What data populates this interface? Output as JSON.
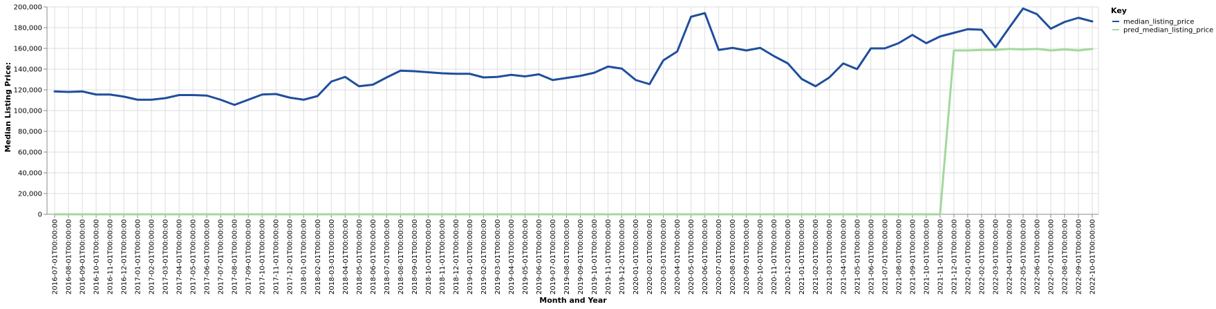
{
  "chart_data": {
    "type": "line",
    "title": "",
    "xlabel": "Month and Year",
    "ylabel": "Median Listing Price:",
    "ylim": [
      0,
      200000
    ],
    "y_ticks": [
      0,
      20000,
      40000,
      60000,
      80000,
      100000,
      120000,
      140000,
      160000,
      180000,
      200000
    ],
    "y_tick_labels": [
      "0",
      "20,000",
      "40,000",
      "60,000",
      "80,000",
      "100,000",
      "120,000",
      "140,000",
      "160,000",
      "180,000",
      "200,000"
    ],
    "grid": true,
    "legend_title": "Key",
    "legend_position": "right",
    "x": [
      "2016-07-01T00:00:00",
      "2016-08-01T00:00:00",
      "2016-09-01T00:00:00",
      "2016-10-01T00:00:00",
      "2016-11-01T00:00:00",
      "2016-12-01T00:00:00",
      "2017-01-01T00:00:00",
      "2017-02-01T00:00:00",
      "2017-03-01T00:00:00",
      "2017-04-01T00:00:00",
      "2017-05-01T00:00:00",
      "2017-06-01T00:00:00",
      "2017-07-01T00:00:00",
      "2017-08-01T00:00:00",
      "2017-09-01T00:00:00",
      "2017-10-01T00:00:00",
      "2017-11-01T00:00:00",
      "2017-12-01T00:00:00",
      "2018-01-01T00:00:00",
      "2018-02-01T00:00:00",
      "2018-03-01T00:00:00",
      "2018-04-01T00:00:00",
      "2018-05-01T00:00:00",
      "2018-06-01T00:00:00",
      "2018-07-01T00:00:00",
      "2018-08-01T00:00:00",
      "2018-09-01T00:00:00",
      "2018-10-01T00:00:00",
      "2018-11-01T00:00:00",
      "2018-12-01T00:00:00",
      "2019-01-01T00:00:00",
      "2019-02-01T00:00:00",
      "2019-03-01T00:00:00",
      "2019-04-01T00:00:00",
      "2019-05-01T00:00:00",
      "2019-06-01T00:00:00",
      "2019-07-01T00:00:00",
      "2019-08-01T00:00:00",
      "2019-09-01T00:00:00",
      "2019-10-01T00:00:00",
      "2019-11-01T00:00:00",
      "2019-12-01T00:00:00",
      "2020-01-01T00:00:00",
      "2020-02-01T00:00:00",
      "2020-03-01T00:00:00",
      "2020-04-01T00:00:00",
      "2020-05-01T00:00:00",
      "2020-06-01T00:00:00",
      "2020-07-01T00:00:00",
      "2020-08-01T00:00:00",
      "2020-09-01T00:00:00",
      "2020-10-01T00:00:00",
      "2020-11-01T00:00:00",
      "2020-12-01T00:00:00",
      "2021-01-01T00:00:00",
      "2021-02-01T00:00:00",
      "2021-03-01T00:00:00",
      "2021-04-01T00:00:00",
      "2021-05-01T00:00:00",
      "2021-06-01T00:00:00",
      "2021-07-01T00:00:00",
      "2021-08-01T00:00:00",
      "2021-09-01T00:00:00",
      "2021-10-01T00:00:00",
      "2021-11-01T00:00:00",
      "2021-12-01T00:00:00",
      "2022-01-01T00:00:00",
      "2022-02-01T00:00:00",
      "2022-03-01T00:00:00",
      "2022-04-01T00:00:00",
      "2022-05-01T00:00:00",
      "2022-06-01T00:00:00",
      "2022-07-01T00:00:00",
      "2022-08-01T00:00:00",
      "2022-09-01T00:00:00",
      "2022-10-01T00:00:00"
    ],
    "series": [
      {
        "name": "median_listing_price",
        "color": "#1f4e9c",
        "values": [
          118500,
          118000,
          118500,
          115500,
          115500,
          113500,
          110500,
          110500,
          112000,
          115000,
          115000,
          114500,
          110500,
          105500,
          110500,
          115500,
          116000,
          112500,
          110500,
          114000,
          128000,
          132500,
          123500,
          125000,
          132000,
          138500,
          138000,
          137000,
          136000,
          135500,
          135500,
          132000,
          132500,
          134500,
          133000,
          135000,
          129500,
          131500,
          133500,
          136500,
          142500,
          140500,
          129500,
          125500,
          148500,
          157000,
          190500,
          194000,
          158500,
          160500,
          158000,
          160500,
          152500,
          145500,
          130500,
          123500,
          132000,
          145500,
          140000,
          160000,
          160000,
          165000,
          173000,
          165000,
          171500,
          175000,
          178500,
          178000,
          161000,
          180000,
          198500,
          193000,
          179000,
          185500,
          189500,
          186000
        ]
      },
      {
        "name": "pred_median_listing_price",
        "color": "#a1d99b",
        "values": [
          0,
          0,
          0,
          0,
          0,
          0,
          0,
          0,
          0,
          0,
          0,
          0,
          0,
          0,
          0,
          0,
          0,
          0,
          0,
          0,
          0,
          0,
          0,
          0,
          0,
          0,
          0,
          0,
          0,
          0,
          0,
          0,
          0,
          0,
          0,
          0,
          0,
          0,
          0,
          0,
          0,
          0,
          0,
          0,
          0,
          0,
          0,
          0,
          0,
          0,
          0,
          0,
          0,
          0,
          0,
          0,
          0,
          0,
          0,
          0,
          0,
          0,
          0,
          0,
          0,
          158000,
          158000,
          158500,
          158500,
          159500,
          159000,
          159500,
          158000,
          159000,
          158000,
          159500
        ]
      }
    ]
  }
}
